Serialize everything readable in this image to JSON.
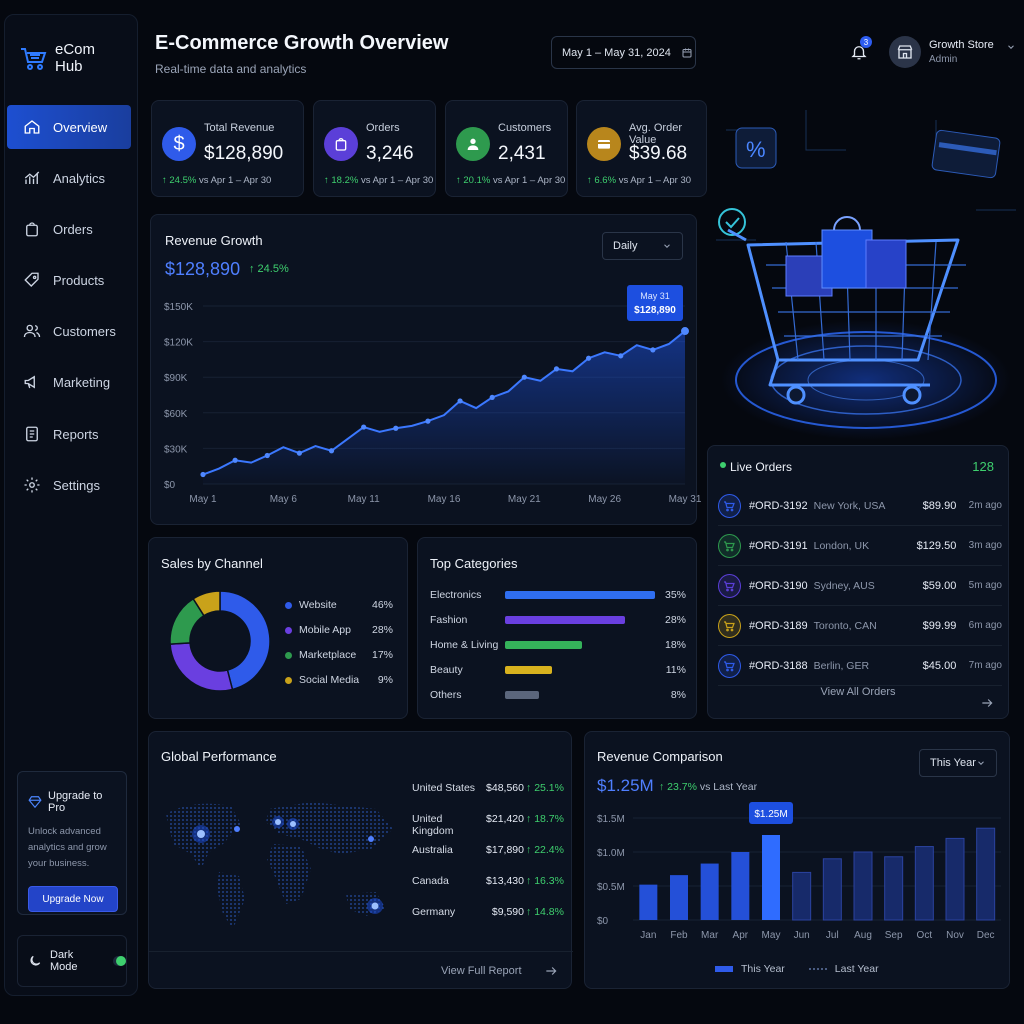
{
  "app": {
    "logo_line1": "eCom",
    "logo_line2": "Hub"
  },
  "sidebar": {
    "items": [
      {
        "label": "Overview",
        "icon": "home-icon"
      },
      {
        "label": "Analytics",
        "icon": "chart-icon"
      },
      {
        "label": "Orders",
        "icon": "bag-icon"
      },
      {
        "label": "Products",
        "icon": "tag-icon"
      },
      {
        "label": "Customers",
        "icon": "users-icon"
      },
      {
        "label": "Marketing",
        "icon": "megaphone-icon"
      },
      {
        "label": "Reports",
        "icon": "report-icon"
      },
      {
        "label": "Settings",
        "icon": "gear-icon"
      }
    ],
    "upgrade": {
      "title": "Upgrade to Pro",
      "desc": "Unlock advanced analytics and grow your business.",
      "button": "Upgrade Now"
    },
    "dark_mode": {
      "label": "Dark Mode",
      "enabled": true
    }
  },
  "header": {
    "title": "E-Commerce Growth Overview",
    "subtitle": "Real-time data and analytics",
    "date_range": "May 1 – May 31, 2024",
    "notifications": "3",
    "profile_name": "Growth Store",
    "profile_role": "Admin"
  },
  "kpis": [
    {
      "label": "Total Revenue",
      "value": "$128,890",
      "change": "↑ 24.5%",
      "period": "vs Apr 1 – Apr 30",
      "color": "#2f5bea"
    },
    {
      "label": "Orders",
      "value": "3,246",
      "change": "↑ 18.2%",
      "period": "vs Apr 1 – Apr 30",
      "color": "#5b3fd8"
    },
    {
      "label": "Customers",
      "value": "2,431",
      "change": "↑ 20.1%",
      "period": "vs Apr 1 – Apr 30",
      "color": "#2e9a4e"
    },
    {
      "label": "Avg. Order Value",
      "value": "$39.68",
      "change": "↑ 6.6%",
      "period": "vs Apr 1 – Apr 30",
      "color": "#b8861c"
    }
  ],
  "revenue_growth": {
    "title": "Revenue Growth",
    "value": "$128,890",
    "change": "↑ 24.5%",
    "period_select": "Daily",
    "tooltip_date": "May 31",
    "tooltip_value": "$128,890"
  },
  "live_orders": {
    "title": "Live Orders",
    "count": "128",
    "footer": "View All Orders",
    "rows": [
      {
        "id": "#ORD-3192",
        "location": "New York, USA",
        "amount": "$89.90",
        "time": "2m ago",
        "color": "#2f5bea"
      },
      {
        "id": "#ORD-3191",
        "location": "London, UK",
        "amount": "$129.50",
        "time": "3m ago",
        "color": "#2e9a4e"
      },
      {
        "id": "#ORD-3190",
        "location": "Sydney, AUS",
        "amount": "$59.00",
        "time": "5m ago",
        "color": "#5b3fd8"
      },
      {
        "id": "#ORD-3189",
        "location": "Toronto, CAN",
        "amount": "$99.99",
        "time": "6m ago",
        "color": "#c9a21a"
      },
      {
        "id": "#ORD-3188",
        "location": "Berlin, GER",
        "amount": "$45.00",
        "time": "7m ago",
        "color": "#2f5bea"
      }
    ]
  },
  "sales_by_channel": {
    "title": "Sales by Channel",
    "items": [
      {
        "label": "Website",
        "value": "46%",
        "pct": 46,
        "color": "#2f5bea"
      },
      {
        "label": "Mobile App",
        "value": "28%",
        "pct": 28,
        "color": "#6a3fe0"
      },
      {
        "label": "Marketplace",
        "value": "17%",
        "pct": 17,
        "color": "#2e9a4e"
      },
      {
        "label": "Social Media",
        "value": "9%",
        "pct": 9,
        "color": "#c9a21a"
      }
    ]
  },
  "top_categories": {
    "title": "Top Categories",
    "items": [
      {
        "label": "Electronics",
        "value": "35%",
        "pct": 35,
        "color": "#2f6ef0"
      },
      {
        "label": "Fashion",
        "value": "28%",
        "pct": 28,
        "color": "#6a3fe0"
      },
      {
        "label": "Home & Living",
        "value": "18%",
        "pct": 18,
        "color": "#35b25a"
      },
      {
        "label": "Beauty",
        "value": "11%",
        "pct": 11,
        "color": "#d8b21e"
      },
      {
        "label": "Others",
        "value": "8%",
        "pct": 8,
        "color": "#5b667c"
      }
    ]
  },
  "global_performance": {
    "title": "Global Performance",
    "footer": "View Full Report",
    "rows": [
      {
        "country": "United States",
        "amount": "$48,560",
        "change": "↑ 25.1%"
      },
      {
        "country": "United Kingdom",
        "amount": "$21,420",
        "change": "↑ 18.7%"
      },
      {
        "country": "Australia",
        "amount": "$17,890",
        "change": "↑ 22.4%"
      },
      {
        "country": "Canada",
        "amount": "$13,430",
        "change": "↑ 16.3%"
      },
      {
        "country": "Germany",
        "amount": "$9,590",
        "change": "↑ 14.8%"
      }
    ]
  },
  "revenue_comparison": {
    "title": "Revenue Comparison",
    "value": "$1.25M",
    "change": "↑ 23.7%",
    "period": "vs Last Year",
    "select": "This Year",
    "tooltip": "$1.25M",
    "legend_this": "This Year",
    "legend_last": "Last Year"
  },
  "chart_data": [
    {
      "type": "area",
      "title": "Revenue Growth",
      "x": [
        1,
        2,
        3,
        4,
        5,
        6,
        7,
        8,
        9,
        10,
        11,
        12,
        13,
        14,
        15,
        16,
        17,
        18,
        19,
        20,
        21,
        22,
        23,
        24,
        25,
        26,
        27,
        28,
        29,
        30,
        31
      ],
      "values": [
        8000,
        13000,
        20000,
        18000,
        24000,
        31000,
        26000,
        32000,
        28000,
        38000,
        48000,
        44000,
        47000,
        49000,
        53000,
        58000,
        70000,
        64000,
        73000,
        78000,
        90000,
        87000,
        97000,
        95000,
        106000,
        111000,
        108000,
        117000,
        113000,
        118000,
        128890
      ],
      "xticks": [
        "May 1",
        "May 6",
        "May 11",
        "May 16",
        "May 21",
        "May 26",
        "May 31"
      ],
      "yticks": [
        "$0",
        "$30K",
        "$60K",
        "$90K",
        "$120K",
        "$150K"
      ],
      "ylim": [
        0,
        150000
      ],
      "grid": true
    },
    {
      "type": "pie",
      "title": "Sales by Channel",
      "categories": [
        "Website",
        "Mobile App",
        "Marketplace",
        "Social Media"
      ],
      "values": [
        46,
        28,
        17,
        9
      ]
    },
    {
      "type": "bar",
      "title": "Top Categories",
      "categories": [
        "Electronics",
        "Fashion",
        "Home & Living",
        "Beauty",
        "Others"
      ],
      "values": [
        35,
        28,
        18,
        11,
        8
      ]
    },
    {
      "type": "bar",
      "title": "Revenue Comparison",
      "categories": [
        "Jan",
        "Feb",
        "Mar",
        "Apr",
        "May",
        "Jun",
        "Jul",
        "Aug",
        "Sep",
        "Oct",
        "Nov",
        "Dec"
      ],
      "series": [
        {
          "name": "This Year",
          "values": [
            0.52,
            0.66,
            0.83,
            1.0,
            1.25,
            null,
            null,
            null,
            null,
            null,
            null,
            null
          ]
        },
        {
          "name": "Last Year",
          "values": [
            null,
            null,
            null,
            null,
            null,
            0.7,
            0.9,
            1.0,
            0.93,
            1.08,
            1.2,
            1.35
          ]
        }
      ],
      "yticks": [
        "$0",
        "$0.5M",
        "$1.0M",
        "$1.5M"
      ],
      "ylim": [
        0,
        1.5
      ]
    }
  ]
}
